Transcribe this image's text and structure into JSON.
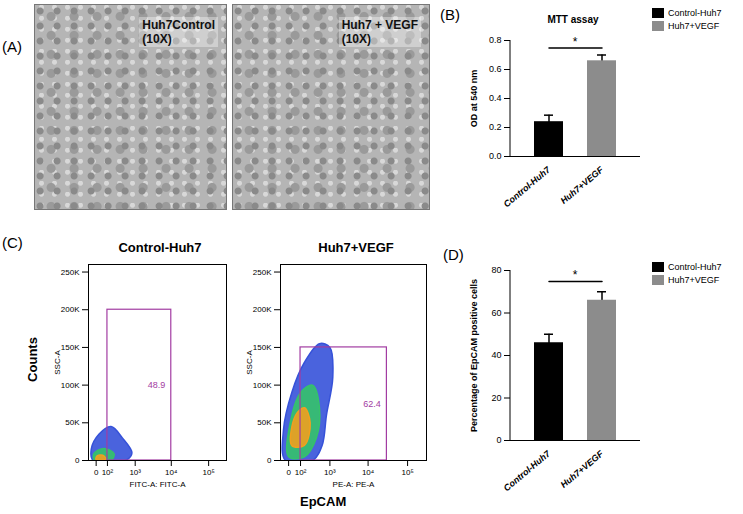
{
  "chart_data": [
    {
      "type": "image",
      "panel": "(A)",
      "images": [
        {
          "label": "Huh7Control",
          "magnification": "(10X)"
        },
        {
          "label": "Huh7 + VEGF",
          "magnification": "(10X)"
        }
      ]
    },
    {
      "type": "bar",
      "panel": "(B)",
      "title": "MTT assay",
      "ylabel": "OD at 540 nm",
      "categories": [
        "Control-Huh7",
        "Huh7+VEGF"
      ],
      "values": [
        0.24,
        0.66
      ],
      "errors": [
        0.045,
        0.04
      ],
      "colors": [
        "#000000",
        "#8c8c8c"
      ],
      "ylim": [
        0,
        0.8
      ],
      "yticks": [
        {
          "value": 0,
          "label": "0.0"
        },
        {
          "value": 0.2,
          "label": "0.2"
        },
        {
          "value": 0.4,
          "label": "0.4"
        },
        {
          "value": 0.6,
          "label": "0.6"
        },
        {
          "value": 0.8,
          "label": "0.8"
        }
      ],
      "legend": "right",
      "annotations": [
        "*"
      ]
    },
    {
      "type": "flow_cytometry",
      "panel": "(C)",
      "xlabel": "EpCAM",
      "ylabel": "Counts",
      "plots": [
        {
          "title": "Control-Huh7",
          "xlabel": "FITC-A: FITC-A",
          "ylabel": "SSC-A",
          "log": "x",
          "xlim": [
            -60,
            300000
          ],
          "xticks": [
            0,
            {
              "value": 100,
              "label": "10²"
            },
            {
              "value": 1000,
              "label": "10³"
            },
            {
              "value": 10000,
              "label": "10⁴"
            },
            {
              "value": 100000,
              "label": "10⁵"
            }
          ],
          "ylim": [
            0,
            260000
          ],
          "yticks": [
            0,
            {
              "value": 50000,
              "label": "50K"
            },
            {
              "value": 100000,
              "label": "100K"
            },
            {
              "value": 150000,
              "label": "150K"
            },
            {
              "value": 200000,
              "label": "200K"
            },
            {
              "value": 250000,
              "label": "250K"
            }
          ],
          "gate": {
            "x": [
              100,
              10000
            ],
            "y": [
              0,
              200000
            ],
            "value": 48.9,
            "color": "#a23ca2"
          },
          "populations": [
            {
              "color": "#3652d9",
              "points": [
                [
                  -20,
                  0
                ],
                [
                  -35,
                  15000
                ],
                [
                  20,
                  35000
                ],
                [
                  150,
                  45000
                ],
                [
                  400,
                  30000
                ],
                [
                  800,
                  10000
                ],
                [
                  500,
                  0
                ]
              ]
            },
            {
              "color": "#35c26a",
              "points": [
                [
                  -10,
                  0
                ],
                [
                  -15,
                  9000
                ],
                [
                  60,
                  16000
                ],
                [
                  200,
                  9000
                ],
                [
                  150,
                  0
                ]
              ]
            },
            {
              "color": "#f0a020",
              "points": [
                [
                  0,
                  1000
                ],
                [
                  5,
                  6000
                ],
                [
                  50,
                  7000
                ],
                [
                  80,
                  2000
                ]
              ]
            }
          ]
        },
        {
          "title": "Huh7+VEGF",
          "xlabel": "PE-A: PE-A",
          "ylabel": "SSC-A",
          "log": "x",
          "xlim": [
            -60,
            300000
          ],
          "xticks": [
            0,
            {
              "value": 100,
              "label": "10²"
            },
            {
              "value": 1000,
              "label": "10³"
            },
            {
              "value": 10000,
              "label": "10⁴"
            },
            {
              "value": 100000,
              "label": "10⁵"
            }
          ],
          "ylim": [
            0,
            260000
          ],
          "yticks": [
            0,
            {
              "value": 50000,
              "label": "50K"
            },
            {
              "value": 100000,
              "label": "100K"
            },
            {
              "value": 150000,
              "label": "150K"
            },
            {
              "value": 200000,
              "label": "200K"
            },
            {
              "value": 250000,
              "label": "250K"
            }
          ],
          "gate": {
            "x": [
              100,
              30000
            ],
            "y": [
              0,
              150000
            ],
            "value": 62.4,
            "color": "#a23ca2"
          },
          "populations": [
            {
              "color": "#3652d9",
              "points": [
                [
                  -20,
                  0
                ],
                [
                  -35,
                  40000
                ],
                [
                  20,
                  90000
                ],
                [
                  150,
                  130000
                ],
                [
                  500,
                  155000
                ],
                [
                  1000,
                  150000
                ],
                [
                  1200,
                  110000
                ],
                [
                  800,
                  60000
                ],
                [
                  600,
                  20000
                ],
                [
                  300,
                  0
                ]
              ]
            },
            {
              "color": "#35c26a",
              "points": [
                [
                  0,
                  5000
                ],
                [
                  10,
                  50000
                ],
                [
                  100,
                  90000
                ],
                [
                  300,
                  100000
                ],
                [
                  500,
                  70000
                ],
                [
                  400,
                  30000
                ],
                [
                  150,
                  5000
                ]
              ]
            },
            {
              "color": "#f0a020",
              "points": [
                [
                  20,
                  20000
                ],
                [
                  50,
                  60000
                ],
                [
                  150,
                  70000
                ],
                [
                  250,
                  50000
                ],
                [
                  150,
                  20000
                ]
              ]
            }
          ]
        }
      ]
    },
    {
      "type": "bar",
      "panel": "(D)",
      "ylabel": "Percentage of EpCAM positive cells",
      "categories": [
        "Control-Huh7",
        "Huh7+VEGF"
      ],
      "values": [
        46,
        66
      ],
      "errors": [
        4,
        4
      ],
      "colors": [
        "#000000",
        "#8c8c8c"
      ],
      "ylim": [
        0,
        80
      ],
      "yticks": [
        0,
        20,
        40,
        60,
        80
      ],
      "legend": "right",
      "annotations": [
        "*"
      ]
    }
  ]
}
